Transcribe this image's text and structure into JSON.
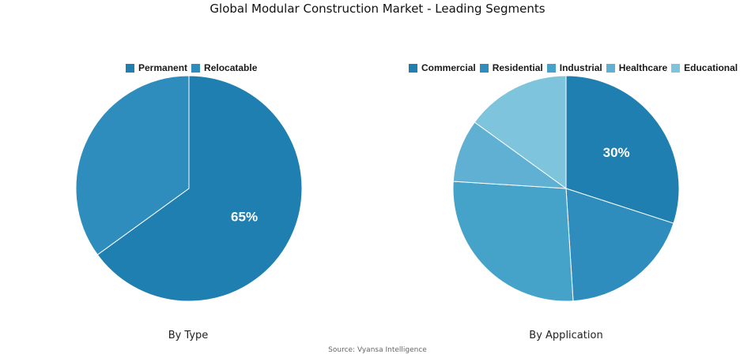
{
  "title": "Global Modular Construction Market - Leading Segments",
  "source": "Source: Vyansa Intelligence",
  "chart_data": [
    {
      "type": "pie",
      "caption": "By Type",
      "labels": [
        "Permanent",
        "Relocatable"
      ],
      "values": [
        65,
        35
      ],
      "colors": [
        "#1e7fb0",
        "#2e8dbd"
      ],
      "shown_labels": [
        "65%",
        ""
      ]
    },
    {
      "type": "pie",
      "caption": "By Application",
      "labels": [
        "Commercial",
        "Residential",
        "Industrial",
        "Healthcare",
        "Educational"
      ],
      "values": [
        30,
        19,
        27,
        9,
        15
      ],
      "colors": [
        "#1e7fb0",
        "#2e8dbd",
        "#45a2c8",
        "#5fb0d3",
        "#7fc4dd"
      ],
      "shown_labels": [
        "30%",
        "",
        "",
        "",
        ""
      ]
    }
  ]
}
